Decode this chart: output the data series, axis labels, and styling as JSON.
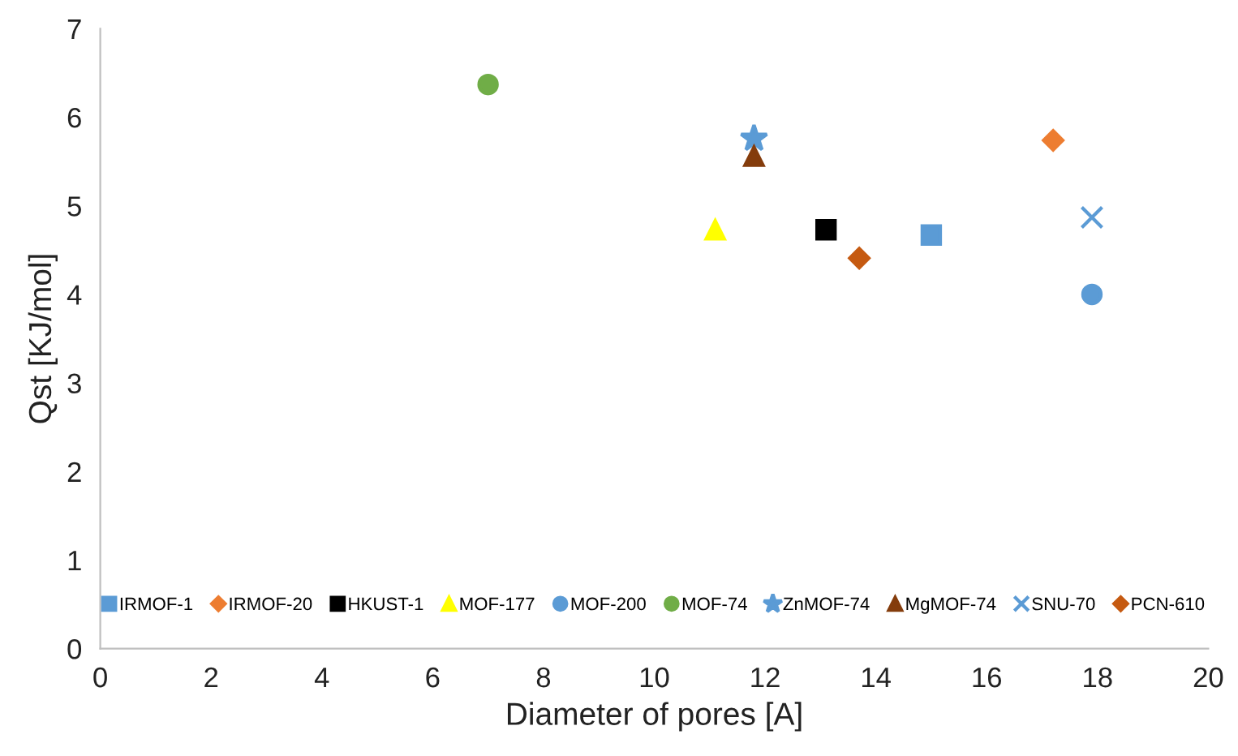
{
  "chart_data": {
    "type": "scatter",
    "xlabel": "Diameter of pores [A]",
    "ylabel": "Qst [KJ/mol]",
    "xlim": [
      0,
      20
    ],
    "xticks": [
      0,
      2,
      4,
      6,
      8,
      10,
      12,
      14,
      16,
      18,
      20
    ],
    "ylim": [
      0,
      7
    ],
    "yticks": [
      0,
      1,
      2,
      3,
      4,
      5,
      6,
      7
    ],
    "grid": false,
    "legend": "bottom",
    "series": [
      {
        "name": "IRMOF-1",
        "color": "#5b9bd5",
        "marker": "square",
        "x": [
          15.0
        ],
        "values": [
          4.67
        ]
      },
      {
        "name": "IRMOF-20",
        "color": "#ed7d31",
        "marker": "diamond",
        "x": [
          17.2
        ],
        "values": [
          5.74
        ]
      },
      {
        "name": "HKUST-1",
        "color": "#000000",
        "marker": "square",
        "x": [
          13.1
        ],
        "values": [
          4.73
        ]
      },
      {
        "name": "MOF-177",
        "color": "#ffff00",
        "marker": "triangle",
        "x": [
          11.1
        ],
        "values": [
          4.73
        ]
      },
      {
        "name": "MOF-200",
        "color": "#5b9bd5",
        "marker": "circle",
        "x": [
          17.9
        ],
        "values": [
          4.0
        ]
      },
      {
        "name": "MOF-74",
        "color": "#70ad47",
        "marker": "circle",
        "x": [
          7.0
        ],
        "values": [
          6.37
        ]
      },
      {
        "name": "ZnMOF-74",
        "color": "#5b9bd5",
        "marker": "star",
        "x": [
          11.8
        ],
        "values": [
          5.76
        ]
      },
      {
        "name": "MgMOF-74",
        "color": "#843c0c",
        "marker": "triangle",
        "x": [
          11.8
        ],
        "values": [
          5.56
        ]
      },
      {
        "name": "SNU-70",
        "color": "#5b9bd5",
        "marker": "cross",
        "x": [
          17.9
        ],
        "values": [
          4.87
        ]
      },
      {
        "name": "PCN-610",
        "color": "#c55a11",
        "marker": "diamond",
        "x": [
          13.7
        ],
        "values": [
          4.41
        ]
      }
    ]
  }
}
